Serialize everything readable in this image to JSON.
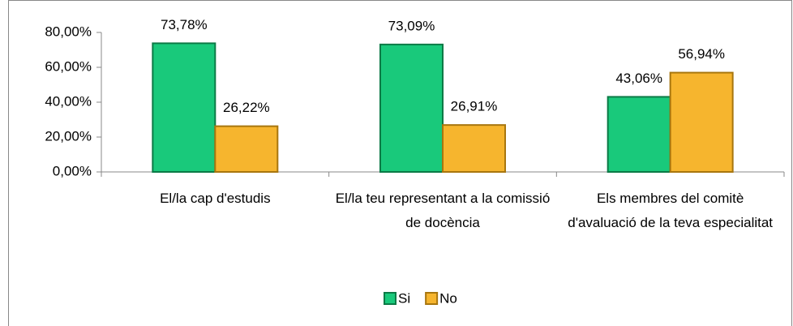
{
  "chart_data": {
    "type": "bar",
    "categories": [
      "El/la cap d'estudis",
      "El/la teu representant a la comissió de docència",
      "Els membres del comitè d'avaluació de la teva especialitat"
    ],
    "series": [
      {
        "name": "Si",
        "color": "#19c97b",
        "values": [
          73.78,
          73.09,
          43.06
        ],
        "value_labels": [
          "73,78%",
          "73,09%",
          "43,06%"
        ]
      },
      {
        "name": "No",
        "color": "#f6b52e",
        "values": [
          26.22,
          26.91,
          56.94
        ],
        "value_labels": [
          "26,22%",
          "26,91%",
          "56,94%"
        ]
      }
    ],
    "ylim": [
      0,
      80
    ],
    "yticks": [
      {
        "value": 0,
        "label": "0,00%"
      },
      {
        "value": 20,
        "label": "20,00%"
      },
      {
        "value": 40,
        "label": "40,00%"
      },
      {
        "value": 60,
        "label": "60,00%"
      },
      {
        "value": 80,
        "label": "80,00%"
      }
    ],
    "legend": "bottom"
  }
}
